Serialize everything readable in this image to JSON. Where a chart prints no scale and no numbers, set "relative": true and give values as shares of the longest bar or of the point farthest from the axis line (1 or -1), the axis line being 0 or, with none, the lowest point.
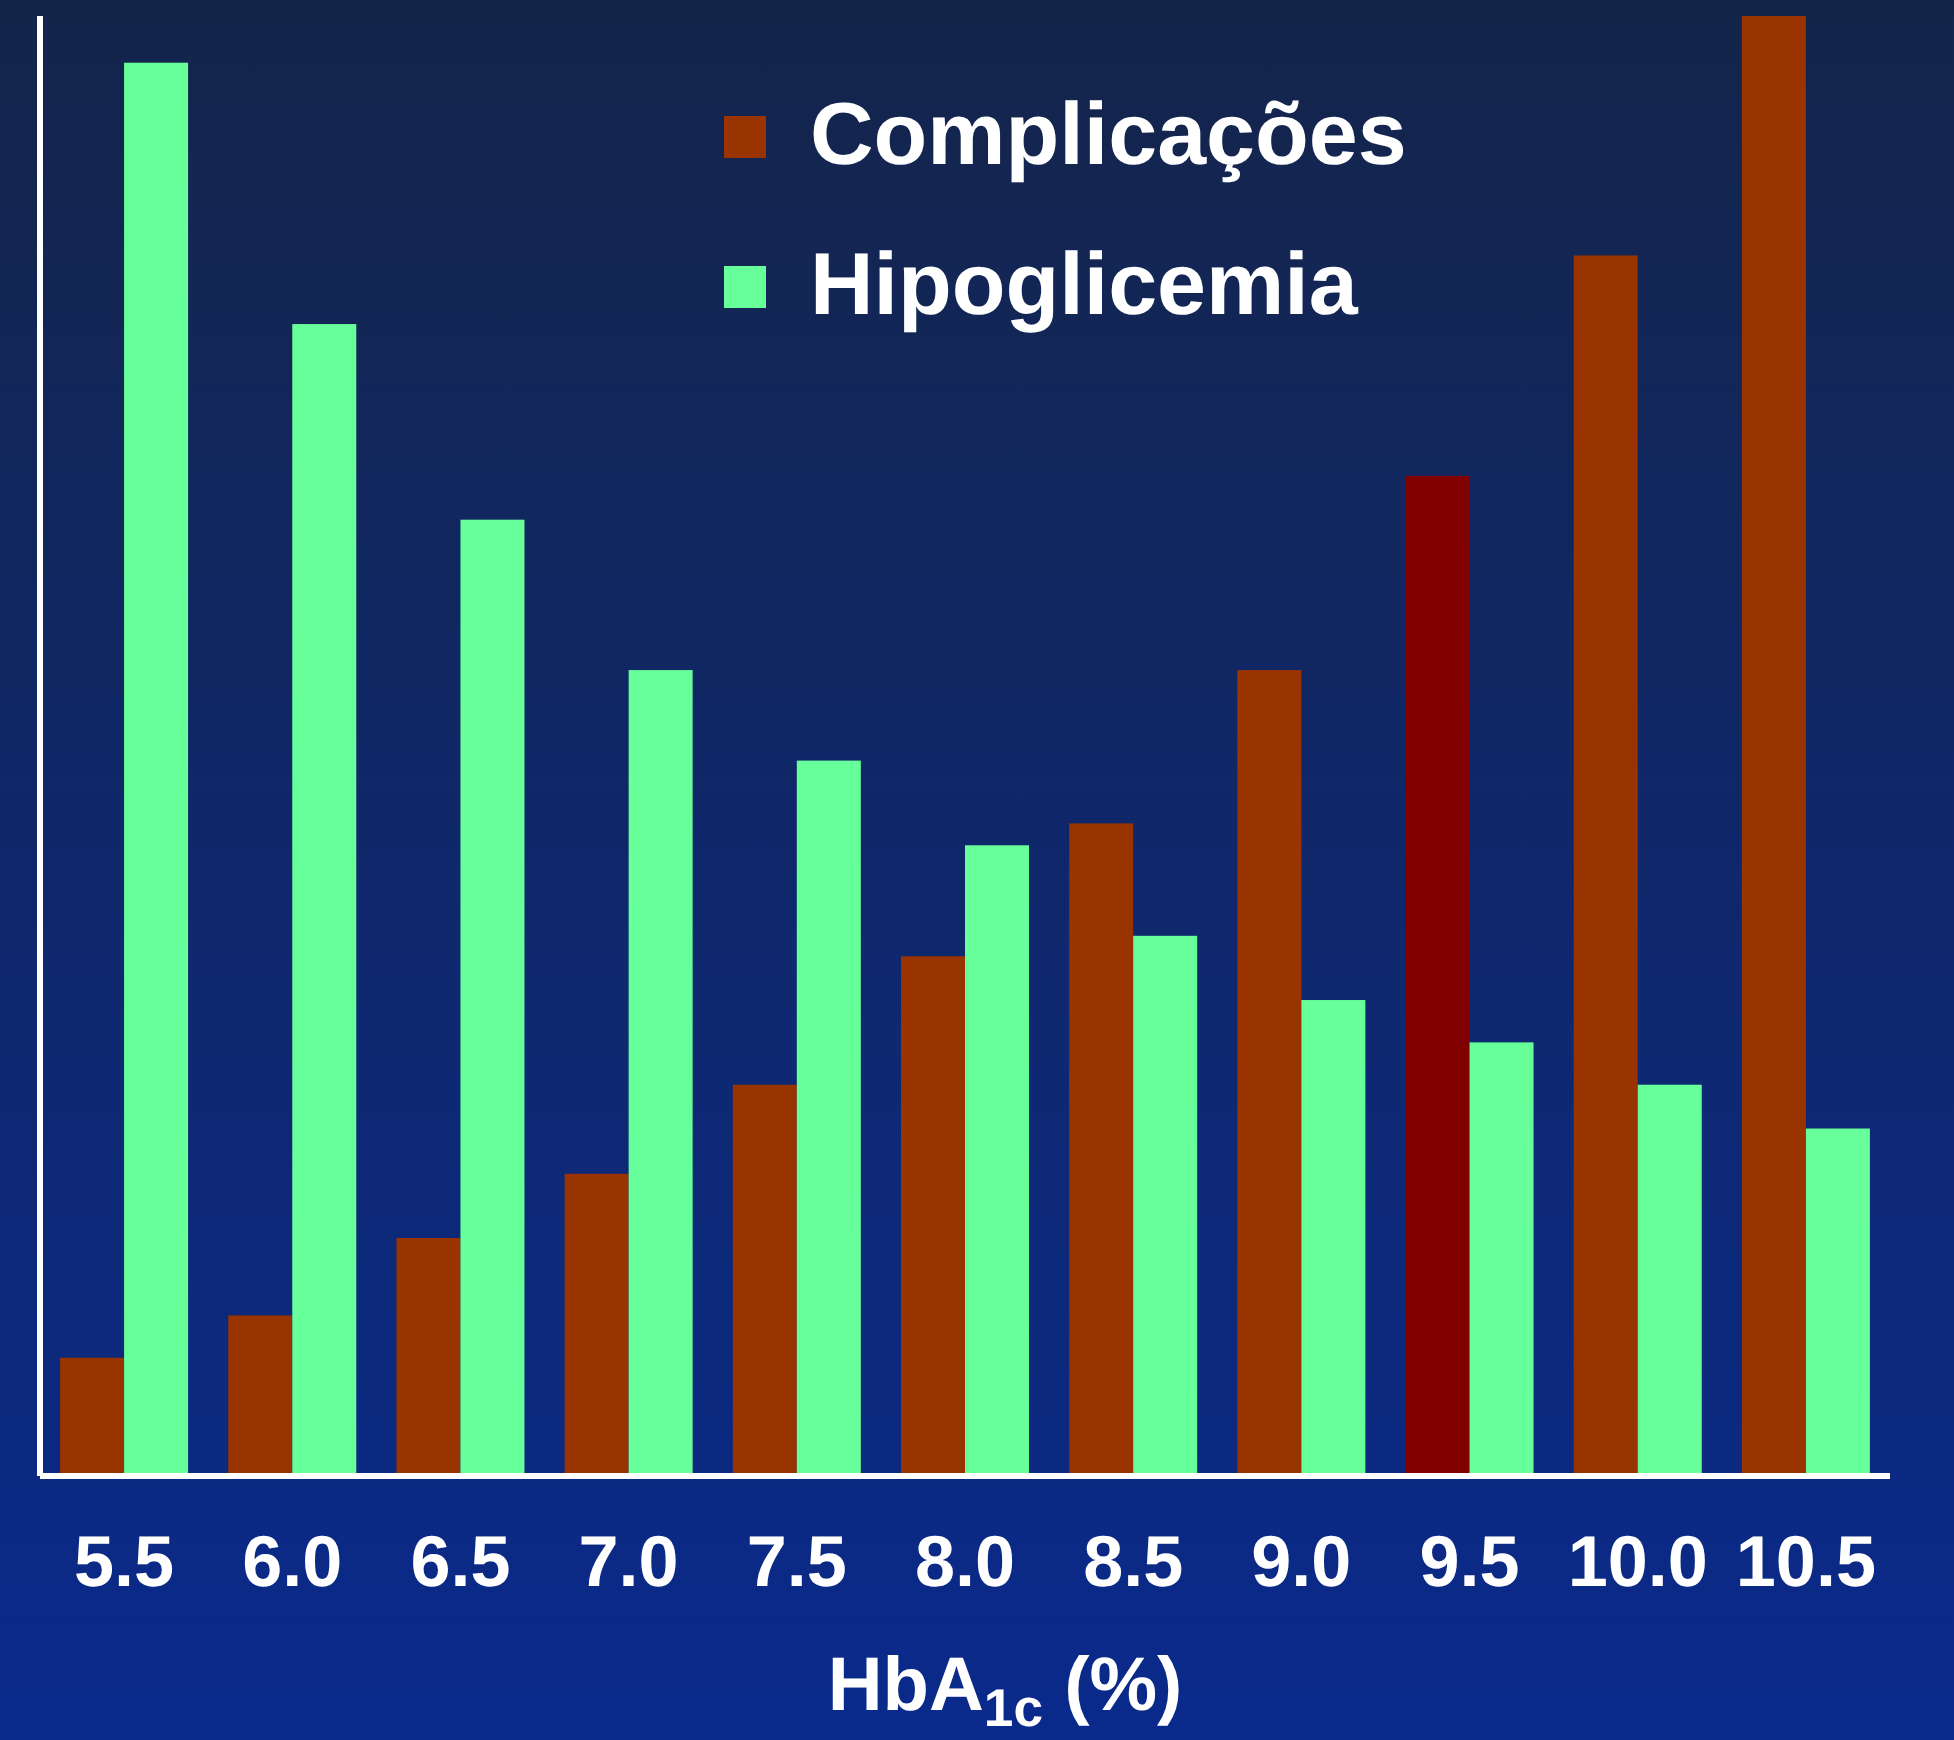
{
  "chart_data": {
    "type": "bar",
    "relative": true,
    "xlabel": "HbA$_{1c}$ (%)",
    "categories": [
      "5.5",
      "6.0",
      "6.5",
      "7.0",
      "7.5",
      "8.0",
      "8.5",
      "9.0",
      "9.5",
      "10.0",
      "10.5"
    ],
    "series": [
      {
        "name": "Complicações",
        "color": "#993300",
        "colors": [
          "#993300",
          "#993300",
          "#993300",
          "#993300",
          "#993300",
          "#993300",
          "#993300",
          "#993300",
          "#800000",
          "#993300",
          "#993300"
        ],
        "values": [
          0.081,
          0.11,
          0.163,
          0.207,
          0.268,
          0.356,
          0.447,
          0.552,
          0.685,
          0.836,
          1
        ]
      },
      {
        "name": "Hipoglicemia",
        "color": "#66ff99",
        "values": [
          0.968,
          0.789,
          0.655,
          0.552,
          0.49,
          0.432,
          0.37,
          0.326,
          0.297,
          0.268,
          0.238
        ]
      }
    ],
    "legend": "top"
  }
}
